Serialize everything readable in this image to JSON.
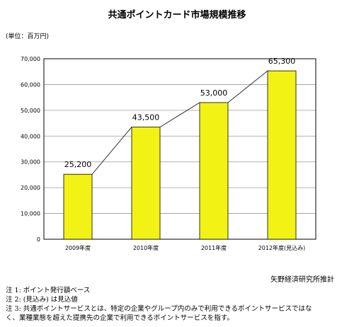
{
  "chart_data": {
    "type": "bar",
    "title": "共通ポイントカード市場規模推移",
    "unit_label": "(単位：百万円)",
    "categories": [
      "2009年度",
      "2010年度",
      "2011年度",
      "2012年度(見込み)"
    ],
    "values": [
      25200,
      43500,
      53000,
      65300
    ],
    "data_labels": [
      "25,200",
      "43,500",
      "53,000",
      "65,300"
    ],
    "ylim": [
      0,
      70000
    ],
    "yticks": [
      0,
      10000,
      20000,
      30000,
      40000,
      50000,
      60000,
      70000
    ],
    "ytick_labels": [
      "0",
      "10,000",
      "20,000",
      "30,000",
      "40,000",
      "50,000",
      "60,000",
      "70,000"
    ],
    "bar_color": "#f2f215",
    "bar_border_color": "#000000",
    "trend_line": true,
    "grid": true
  },
  "source": "矢野経済研究所推計",
  "notes": [
    "注 1:  ポイント発行額ベース",
    "注 2:  (見込み) は見込値",
    "注 3:  共通ポイントサービスとは、特定の企業やグループ内のみで利用できるポイントサービスではな",
    "く、業種業態を超えた提携先の企業で利用できるポイントサービスを指す。"
  ]
}
